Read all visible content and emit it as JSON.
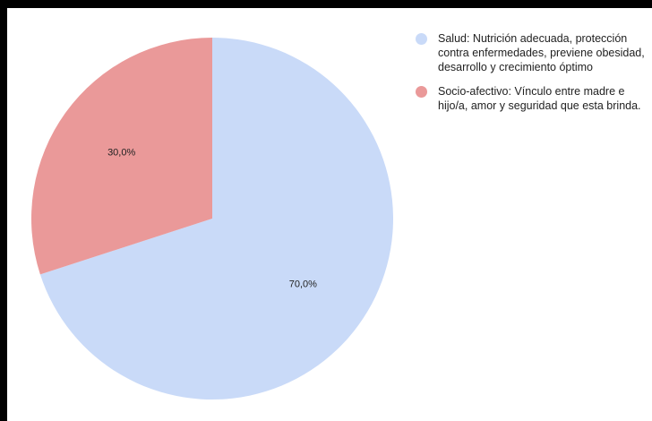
{
  "chart_data": {
    "type": "pie",
    "slices": [
      {
        "name": "Salud: Nutrición adecuada, protección contra enfermedades, previene obesidad, desarrollo y crecimiento óptimo",
        "value": 70.0,
        "label": "70,0%",
        "color": "#c9daf8"
      },
      {
        "name": " Socio-afectivo: Vínculo entre madre e hijo/a, amor y seguridad que esta brinda.",
        "value": 30.0,
        "label": "30,0%",
        "color": "#ea9999"
      }
    ],
    "legend_position": "top-right"
  }
}
